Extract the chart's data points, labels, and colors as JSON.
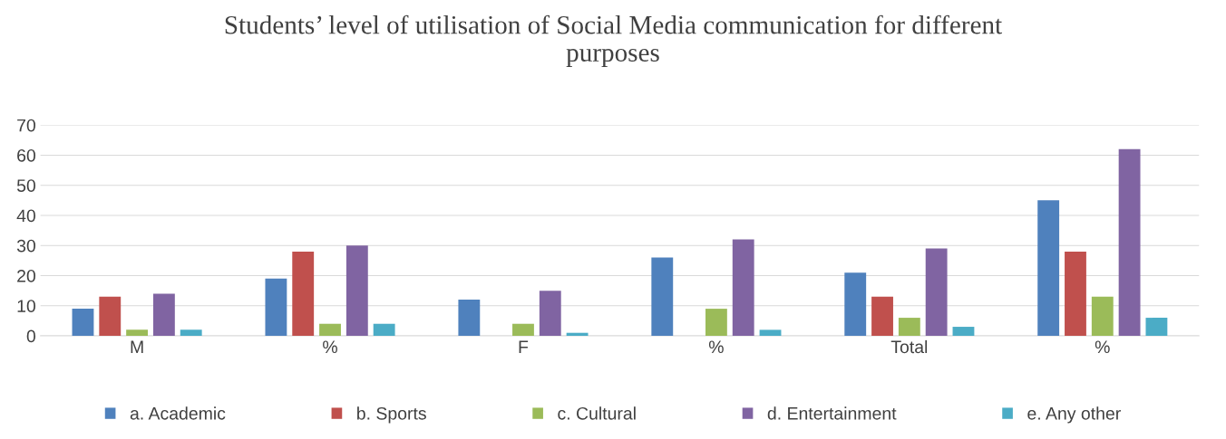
{
  "chart_data": {
    "type": "bar",
    "title": "Students’ level of utilisation of Social Media communication for different\npurposes",
    "categories": [
      "M",
      "%",
      "F",
      "%",
      "Total",
      "%"
    ],
    "series": [
      {
        "name": "a. Academic",
        "color": "#4f81bd",
        "values": [
          9,
          19,
          12,
          26,
          21,
          45
        ]
      },
      {
        "name": "b. Sports",
        "color": "#c0504d",
        "values": [
          13,
          28,
          0,
          0,
          13,
          28
        ]
      },
      {
        "name": "c. Cultural",
        "color": "#9bbb59",
        "values": [
          2,
          4,
          4,
          9,
          6,
          13
        ]
      },
      {
        "name": "d. Entertainment",
        "color": "#8064a2",
        "values": [
          14,
          30,
          15,
          32,
          29,
          62
        ]
      },
      {
        "name": "e. Any other",
        "color": "#4bacc6",
        "values": [
          2,
          4,
          1,
          2,
          3,
          6
        ]
      }
    ],
    "ylim": [
      0,
      70
    ],
    "yticks": [
      0,
      10,
      20,
      30,
      40,
      50,
      60,
      70
    ],
    "grid": "y",
    "legend": "bottom"
  }
}
